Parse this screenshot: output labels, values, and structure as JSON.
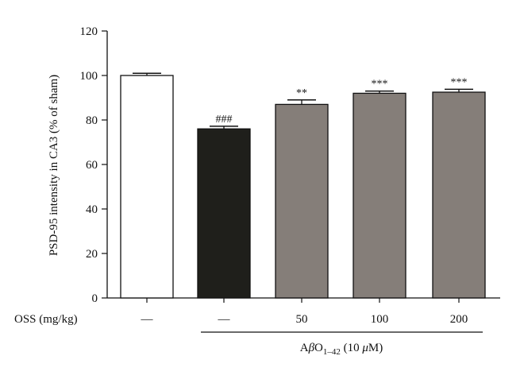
{
  "chart_data": {
    "type": "bar",
    "ylabel": "PSD-95 intensity in CA3 (% of sham)",
    "ylim": [
      0,
      120
    ],
    "yticks": [
      0,
      20,
      40,
      60,
      80,
      100,
      120
    ],
    "row_label": "OSS (mg/kg)",
    "categories": [
      "—",
      "—",
      "50",
      "100",
      "200"
    ],
    "values": [
      100.0,
      76.0,
      87.0,
      92.0,
      92.5
    ],
    "errors": [
      1.0,
      1.2,
      2.0,
      1.0,
      1.3
    ],
    "significance": [
      "",
      "###",
      "**",
      "***",
      "***"
    ],
    "bar_colors": [
      "#ffffff",
      "#1f1f1b",
      "#857e79",
      "#857e79",
      "#857e79"
    ],
    "group_label": {
      "prefix": "A",
      "beta": "β",
      "o": "O",
      "subscript": "1–42",
      "suffix_open": " (10 ",
      "mu": "μ",
      "suffix_close": "M)"
    },
    "grid": false,
    "legend": "none"
  }
}
